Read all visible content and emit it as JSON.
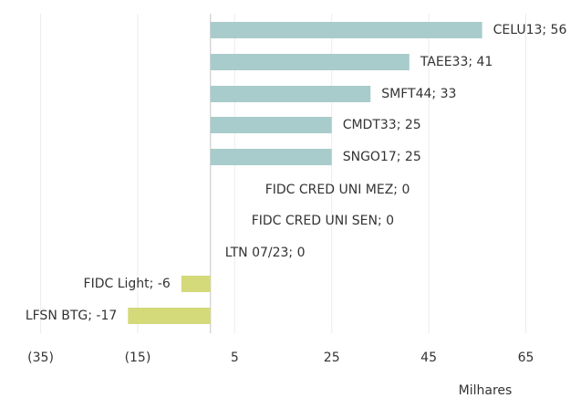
{
  "chart_data": {
    "type": "bar",
    "orientation": "horizontal",
    "values": [
      56,
      41,
      33,
      25,
      25,
      0,
      0,
      0,
      -6,
      -17
    ],
    "value_labels": [
      "CELU13; 56",
      "TAEE33; 41",
      "SMFT44; 33",
      "CMDT33; 25",
      "SNGO17; 25",
      "FIDC CRED UNI MEZ; 0",
      "FIDC CRED UNI SEN; 0",
      "LTN 07/23; 0",
      "FIDC Light; -6",
      "LFSN BTG; -17"
    ],
    "colors": [
      "#a8cccb",
      "#a8cccb",
      "#a8cccb",
      "#a8cccb",
      "#a8cccb",
      "#a8cccb",
      "#a8cccb",
      "#a8cccb",
      "#d4d97a",
      "#d4d97a"
    ],
    "xlim": [
      -43,
      76
    ],
    "xticks": [
      {
        "value": -35,
        "label": "(35)"
      },
      {
        "value": -15,
        "label": "(15)"
      },
      5,
      25,
      45,
      65
    ],
    "xlabel": "Milhares",
    "grid": true
  }
}
